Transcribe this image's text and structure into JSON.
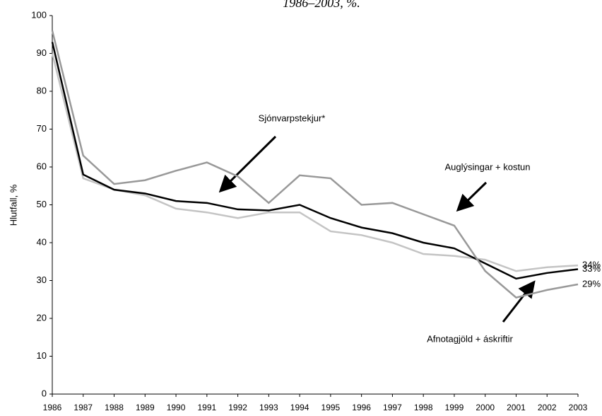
{
  "chart_data": {
    "type": "line",
    "title": "1986–2003, %.",
    "y_label": "Hlutfall, %",
    "categories": [
      "1986",
      "1987",
      "1988",
      "1989",
      "1990",
      "1991",
      "1992",
      "1993",
      "1994",
      "1995",
      "1996",
      "1997",
      "1998",
      "1999",
      "2000",
      "2001",
      "2002",
      "2003"
    ],
    "series": [
      {
        "name": "Afnotagjöld + áskriftir",
        "color": "#c4c4c4",
        "values": [
          90,
          57,
          54,
          52.5,
          49,
          48,
          46.5,
          48,
          48,
          43,
          42,
          40,
          37,
          36.5,
          35.5,
          32.5,
          33.5,
          34
        ],
        "value_labels": [
          null,
          null,
          null,
          null,
          null,
          null,
          null,
          null,
          null,
          null,
          null,
          null,
          null,
          null,
          null,
          null,
          null,
          "34%"
        ]
      },
      {
        "name": "Sjónvarpstekjur*",
        "color": "#000000",
        "values": [
          93,
          58,
          54,
          53,
          51,
          50.5,
          48.8,
          48.5,
          50,
          46.5,
          44,
          42.5,
          40,
          38.5,
          34.5,
          30.5,
          32,
          33
        ],
        "value_labels": [
          null,
          null,
          null,
          null,
          null,
          null,
          null,
          null,
          null,
          null,
          null,
          null,
          null,
          null,
          null,
          null,
          null,
          "33%"
        ]
      },
      {
        "name": "Auglýsingar + kostun",
        "color": "#999999",
        "values": [
          96,
          63,
          55.5,
          56.5,
          59,
          61.2,
          57.5,
          50.5,
          57.8,
          57,
          50,
          50.5,
          47.5,
          44.5,
          32.5,
          25.5,
          27.5,
          29
        ],
        "value_labels": [
          null,
          null,
          null,
          null,
          null,
          null,
          null,
          null,
          null,
          null,
          null,
          null,
          null,
          null,
          null,
          null,
          null,
          "29%"
        ]
      }
    ],
    "ylim": [
      0,
      100
    ],
    "yticks": [
      0,
      10,
      20,
      30,
      40,
      50,
      60,
      70,
      80,
      90,
      100
    ],
    "grid": false
  }
}
